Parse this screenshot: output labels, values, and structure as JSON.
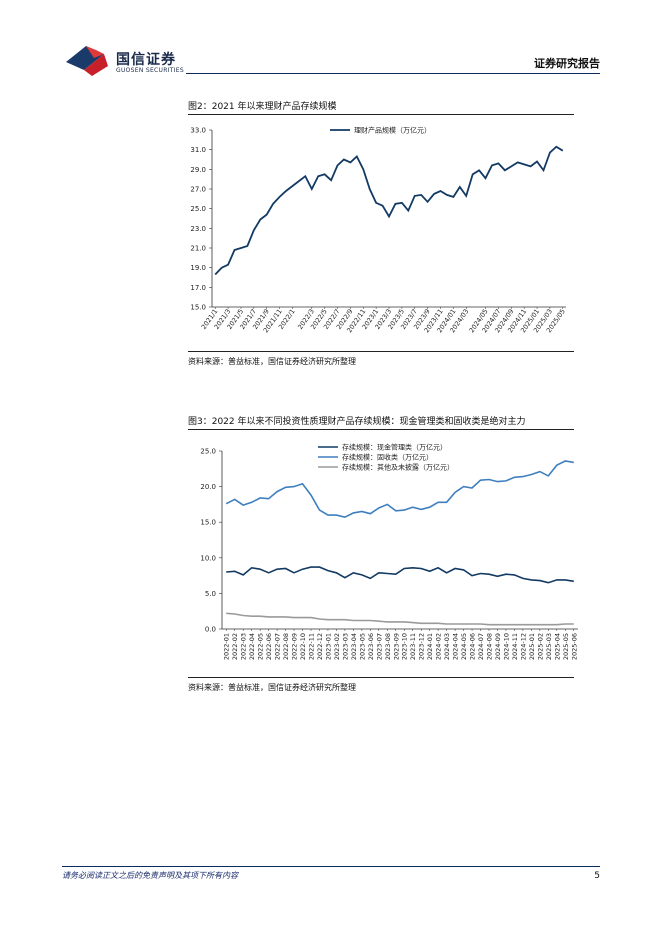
{
  "header": {
    "logo_cn": "国信证券",
    "logo_en": "GUOSEN SECURITIES",
    "report_type": "证券研究报告"
  },
  "figure2": {
    "title": "图2：2021 年以来理财产品存续规模",
    "source": "资料来源：普益标准，国信证券经济研究所整理"
  },
  "figure3": {
    "title": "图3：2022 年以来不同投资性质理财产品存续规模：现金管理类和固收类是绝对主力",
    "source": "资料来源：普益标准，国信证券经济研究所整理"
  },
  "footer": {
    "disclaimer": "请务必阅读正文之后的免责声明及其项下所有内容",
    "page": "5"
  },
  "colors": {
    "dark_blue": "#123a63",
    "mid_blue": "#3f7fbf",
    "gray": "#9a9a9a",
    "rule": "#0a2a5c"
  },
  "chart_data": [
    {
      "type": "line",
      "title": "",
      "ylim": [
        15.0,
        33.0
      ],
      "yticks": [
        "15.0",
        "17.0",
        "19.0",
        "21.0",
        "23.0",
        "25.0",
        "27.0",
        "29.0",
        "31.0",
        "33.0"
      ],
      "xtick_labels": [
        "2021/1",
        "2021/3",
        "2021/5",
        "2021/7",
        "2021/9",
        "2021/11",
        "2022/1",
        "2022/3",
        "2022/5",
        "2022/7",
        "2022/9",
        "2022/11",
        "2023/1",
        "2023/3",
        "2023/5",
        "2023/7",
        "2023/9",
        "2023/11",
        "2024/01",
        "2024/03",
        "2024/05",
        "2024/07",
        "2024/09",
        "2024/11",
        "2025/01",
        "2025/03",
        "2025/05"
      ],
      "legend_position": "top",
      "grid": false,
      "series": [
        {
          "name": "理财产品规模（万亿元）",
          "color": "#123a63",
          "values": [
            18.3,
            19.0,
            19.3,
            20.8,
            21.0,
            21.2,
            22.8,
            23.9,
            24.4,
            25.5,
            26.2,
            26.8,
            27.3,
            27.8,
            28.3,
            27.0,
            28.3,
            28.5,
            27.9,
            29.4,
            30.0,
            29.7,
            30.3,
            29.0,
            27.0,
            25.6,
            25.3,
            24.2,
            25.5,
            25.6,
            24.8,
            26.3,
            26.4,
            25.7,
            26.5,
            26.8,
            26.4,
            26.2,
            27.2,
            26.3,
            28.5,
            28.9,
            28.1,
            29.4,
            29.6,
            28.9,
            29.3,
            29.7,
            29.5,
            29.3,
            29.8,
            28.9,
            30.7,
            31.3,
            30.9
          ]
        }
      ]
    },
    {
      "type": "line",
      "title": "",
      "ylim": [
        0.0,
        25.0
      ],
      "yticks": [
        "0.0",
        "5.0",
        "10.0",
        "15.0",
        "20.0",
        "25.0"
      ],
      "x": [
        "2022-01",
        "2022-02",
        "2022-03",
        "2022-04",
        "2022-05",
        "2022-06",
        "2022-07",
        "2022-08",
        "2022-09",
        "2022-10",
        "2022-11",
        "2022-12",
        "2023-01",
        "2023-02",
        "2023-03",
        "2023-04",
        "2023-05",
        "2023-06",
        "2023-07",
        "2023-08",
        "2023-09",
        "2023-10",
        "2023-11",
        "2023-12",
        "2024-01",
        "2024-02",
        "2024-03",
        "2024-04",
        "2024-05",
        "2024-06",
        "2024-07",
        "2024-08",
        "2024-09",
        "2024-10",
        "2024-11",
        "2024-12",
        "2025-01",
        "2025-02",
        "2025-03",
        "2025-04",
        "2025-05",
        "2025-06"
      ],
      "legend_position": "top",
      "grid": false,
      "series": [
        {
          "name": "存续规模：现金管理类（万亿元）",
          "color": "#123a63",
          "values": [
            8.0,
            8.1,
            7.6,
            8.6,
            8.4,
            7.9,
            8.4,
            8.5,
            7.9,
            8.4,
            8.7,
            8.7,
            8.2,
            7.9,
            7.2,
            7.9,
            7.6,
            7.1,
            7.9,
            7.8,
            7.7,
            8.5,
            8.6,
            8.5,
            8.1,
            8.6,
            7.9,
            8.5,
            8.3,
            7.5,
            7.8,
            7.7,
            7.4,
            7.7,
            7.6,
            7.1,
            6.9,
            6.8,
            6.5,
            6.9,
            6.9,
            6.7
          ]
        },
        {
          "name": "存续规模：固收类（万亿元）",
          "color": "#3f7fbf",
          "values": [
            17.6,
            18.2,
            17.4,
            17.8,
            18.4,
            18.3,
            19.3,
            19.9,
            20.0,
            20.4,
            18.8,
            16.7,
            16.0,
            16.0,
            15.7,
            16.3,
            16.5,
            16.2,
            17.0,
            17.5,
            16.6,
            16.7,
            17.1,
            16.8,
            17.1,
            17.8,
            17.8,
            19.2,
            20.0,
            19.8,
            20.9,
            21.0,
            20.7,
            20.8,
            21.3,
            21.4,
            21.7,
            22.1,
            21.5,
            23.0,
            23.6,
            23.4
          ]
        },
        {
          "name": "存续规模：其他及未披露（万亿元）",
          "color": "#9a9a9a",
          "values": [
            2.2,
            2.1,
            1.9,
            1.8,
            1.8,
            1.7,
            1.7,
            1.7,
            1.6,
            1.6,
            1.6,
            1.4,
            1.3,
            1.3,
            1.3,
            1.2,
            1.2,
            1.2,
            1.1,
            1.0,
            1.0,
            1.0,
            0.9,
            0.8,
            0.8,
            0.8,
            0.7,
            0.7,
            0.7,
            0.7,
            0.7,
            0.6,
            0.6,
            0.6,
            0.6,
            0.6,
            0.6,
            0.6,
            0.6,
            0.6,
            0.7,
            0.7
          ]
        }
      ]
    }
  ]
}
